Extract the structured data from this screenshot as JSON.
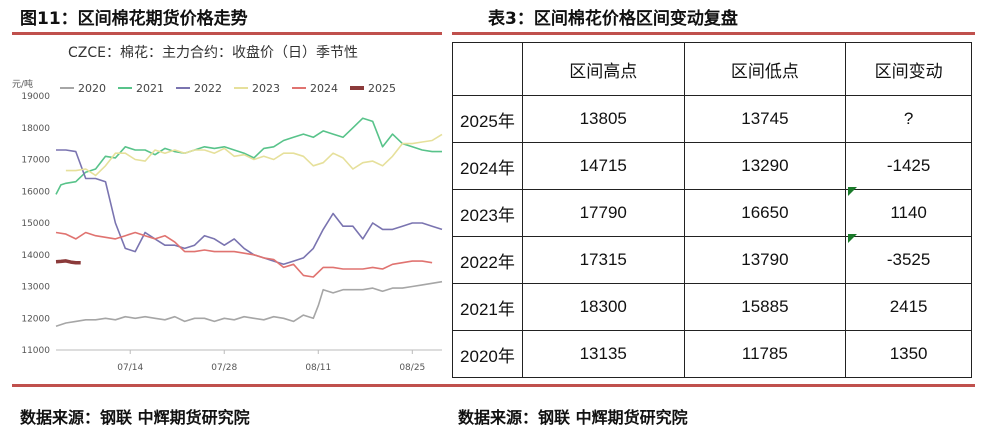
{
  "figure_title": "图11：区间棉花期货价格走势",
  "table_title": "表3：区间棉花价格区间变动复盘",
  "source_left": "数据来源：钢联 中辉期货研究院",
  "source_right": "数据来源：钢联 中辉期货研究院",
  "chart_data": {
    "type": "line",
    "title": "CZCE：棉花：主力合约：收盘价（日）季节性",
    "ylabel": "元/吨",
    "xlabel": "",
    "ylim": [
      11000,
      19000
    ],
    "yticks": [
      11000,
      12000,
      13000,
      14000,
      15000,
      16000,
      17000,
      18000,
      19000
    ],
    "x_range": [
      0,
      78
    ],
    "x_ticks": [
      {
        "x": 15,
        "label": "07/14"
      },
      {
        "x": 34,
        "label": "07/28"
      },
      {
        "x": 53,
        "label": "08/11"
      },
      {
        "x": 72,
        "label": "08/25"
      }
    ],
    "legend_position": "top",
    "grid": false,
    "series": [
      {
        "name": "2020",
        "color": "#a6a6a6",
        "x": [
          0,
          2,
          4,
          6,
          8,
          10,
          12,
          14,
          16,
          18,
          20,
          22,
          24,
          26,
          28,
          30,
          32,
          34,
          36,
          38,
          40,
          42,
          44,
          46,
          48,
          50,
          52,
          53,
          54,
          56,
          58,
          60,
          62,
          64,
          66,
          68,
          70,
          72,
          74,
          76,
          78
        ],
        "y": [
          11750,
          11850,
          11900,
          11950,
          11950,
          12000,
          11950,
          12050,
          12000,
          12050,
          12000,
          11950,
          12050,
          11900,
          12000,
          12000,
          11900,
          12000,
          11950,
          12050,
          12000,
          11950,
          12050,
          12000,
          11900,
          12100,
          12000,
          12400,
          12900,
          12800,
          12900,
          12900,
          12900,
          12950,
          12850,
          12950,
          12950,
          13000,
          13050,
          13100,
          13150
        ]
      },
      {
        "name": "2021",
        "color": "#58c38a",
        "x": [
          0,
          1,
          2,
          4,
          6,
          8,
          10,
          12,
          14,
          16,
          18,
          20,
          22,
          24,
          26,
          28,
          30,
          32,
          34,
          36,
          38,
          40,
          42,
          44,
          46,
          48,
          50,
          52,
          54,
          56,
          58,
          60,
          62,
          64,
          66,
          68,
          70,
          72,
          74,
          76,
          78
        ],
        "y": [
          15900,
          16200,
          16250,
          16300,
          16600,
          16700,
          17100,
          17050,
          17400,
          17300,
          17300,
          17150,
          17350,
          17250,
          17200,
          17300,
          17400,
          17350,
          17400,
          17300,
          17200,
          17050,
          17350,
          17400,
          17600,
          17700,
          17800,
          17700,
          17900,
          17800,
          17700,
          18000,
          18300,
          18200,
          17400,
          17800,
          17500,
          17400,
          17300,
          17250,
          17250
        ]
      },
      {
        "name": "2022",
        "color": "#7a74b0",
        "x": [
          0,
          2,
          4,
          6,
          8,
          10,
          12,
          14,
          16,
          18,
          20,
          22,
          24,
          26,
          28,
          30,
          32,
          34,
          36,
          38,
          40,
          42,
          44,
          46,
          48,
          50,
          52,
          54,
          56,
          58,
          60,
          62,
          64,
          66,
          68,
          70,
          72,
          74,
          76,
          78
        ],
        "y": [
          17300,
          17300,
          17250,
          16400,
          16400,
          16300,
          15000,
          14200,
          14100,
          14700,
          14500,
          14300,
          14300,
          14200,
          14300,
          14600,
          14500,
          14300,
          14500,
          14200,
          14000,
          13900,
          13800,
          13700,
          13800,
          13900,
          14200,
          14800,
          15300,
          14900,
          14900,
          14500,
          15000,
          14800,
          14800,
          14900,
          15000,
          15000,
          14900,
          14800
        ]
      },
      {
        "name": "2023",
        "color": "#e6e09b",
        "x": [
          2,
          4,
          6,
          8,
          10,
          12,
          14,
          16,
          18,
          20,
          22,
          24,
          26,
          28,
          30,
          32,
          34,
          36,
          38,
          40,
          42,
          44,
          46,
          48,
          50,
          52,
          54,
          56,
          58,
          60,
          62,
          64,
          66,
          68,
          70,
          72,
          74,
          76,
          78
        ],
        "y": [
          16650,
          16650,
          16700,
          16500,
          16800,
          17200,
          17200,
          17000,
          16950,
          17300,
          17200,
          17300,
          17200,
          17300,
          17300,
          17200,
          17350,
          17100,
          17150,
          17000,
          17100,
          17000,
          17200,
          17200,
          17100,
          16800,
          16900,
          17200,
          17050,
          16700,
          16900,
          16950,
          16800,
          17100,
          17500,
          17500,
          17550,
          17600,
          17790
        ]
      },
      {
        "name": "2024",
        "color": "#e07370",
        "x": [
          0,
          2,
          4,
          6,
          8,
          10,
          12,
          14,
          16,
          18,
          20,
          22,
          24,
          26,
          28,
          30,
          32,
          34,
          36,
          38,
          40,
          42,
          44,
          46,
          48,
          50,
          52,
          54,
          56,
          58,
          60,
          62,
          64,
          66,
          68,
          70,
          72,
          74,
          76
        ],
        "y": [
          14700,
          14650,
          14500,
          14700,
          14600,
          14550,
          14500,
          14600,
          14700,
          14600,
          14500,
          14600,
          14400,
          14100,
          14100,
          14150,
          14100,
          14100,
          14100,
          14050,
          14000,
          13900,
          13850,
          13600,
          13700,
          13350,
          13300,
          13600,
          13600,
          13550,
          13550,
          13550,
          13600,
          13550,
          13700,
          13750,
          13800,
          13800,
          13750
        ]
      },
      {
        "name": "2025",
        "color": "#8b3a3a",
        "x": [
          0,
          1,
          2,
          3,
          4,
          5
        ],
        "y": [
          13780,
          13790,
          13805,
          13770,
          13750,
          13745
        ]
      }
    ]
  },
  "table": {
    "headers": [
      "",
      "区间高点",
      "区间低点",
      "区间变动"
    ],
    "rows": [
      [
        "2025年",
        "13805",
        "13745",
        "?"
      ],
      [
        "2024年",
        "14715",
        "13290",
        "-1425"
      ],
      [
        "2023年",
        "17790",
        "16650",
        "1140"
      ],
      [
        "2022年",
        "17315",
        "13790",
        "-3525"
      ],
      [
        "2021年",
        "18300",
        "15885",
        "2415"
      ],
      [
        "2020年",
        "13135",
        "11785",
        "1350"
      ]
    ]
  }
}
